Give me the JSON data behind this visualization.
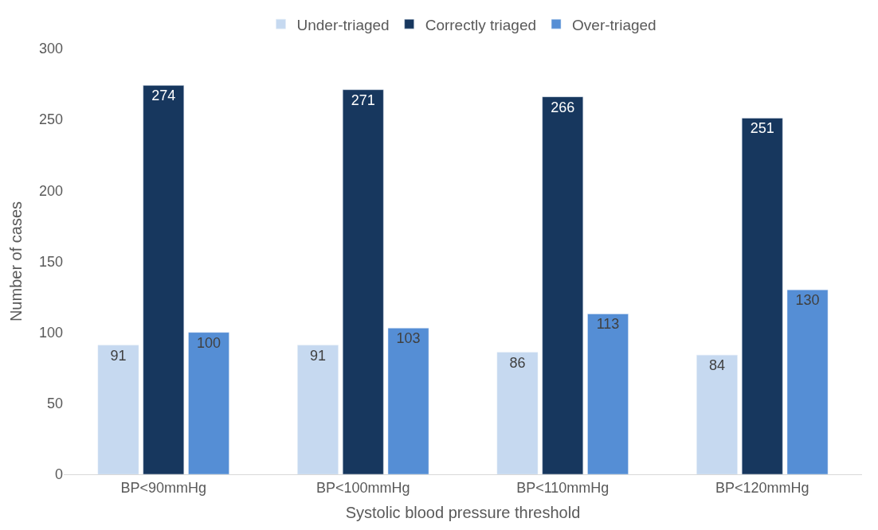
{
  "chart_data": {
    "type": "bar",
    "xlabel": "Systolic blood pressure threshold",
    "ylabel": "Number of cases",
    "categories": [
      "BP<90mmHg",
      "BP<100mmHg",
      "BP<110mmHg",
      "BP<120mmHg"
    ],
    "series": [
      {
        "name": "Under-triaged",
        "color": "#c6d9f0",
        "values": [
          91,
          91,
          86,
          84
        ]
      },
      {
        "name": "Correctly triaged",
        "color": "#17375e",
        "values": [
          274,
          271,
          266,
          251
        ]
      },
      {
        "name": "Over-triaged",
        "color": "#558ed5",
        "values": [
          100,
          103,
          113,
          130
        ]
      }
    ],
    "ylim": [
      0,
      300
    ],
    "yticks": [
      0,
      50,
      100,
      150,
      200,
      250,
      300
    ],
    "grid": false,
    "legend": "top",
    "data_labels": true
  }
}
